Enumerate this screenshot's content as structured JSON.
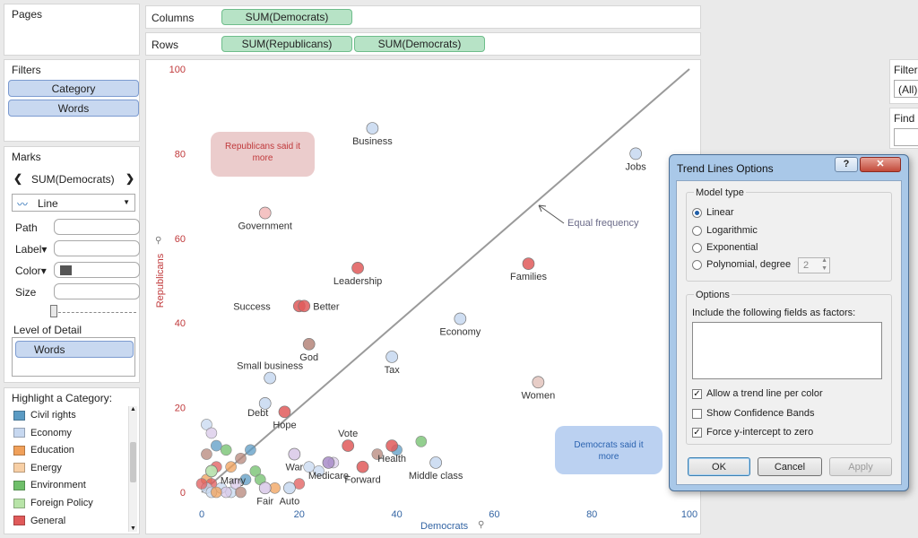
{
  "pages": {
    "title": "Pages"
  },
  "shelves": {
    "columns_label": "Columns",
    "rows_label": "Rows",
    "columns_pills": [
      "SUM(Democrats)"
    ],
    "rows_pills": [
      "SUM(Republicans)",
      "SUM(Democrats)"
    ]
  },
  "filters": {
    "title": "Filters",
    "pills": [
      "Category",
      "Words"
    ]
  },
  "marks": {
    "title": "Marks",
    "measure": "SUM(Democrats)",
    "mark_type": "Line",
    "path": "Path",
    "label": "Label",
    "color": "Color",
    "size": "Size",
    "level_of_detail": "Level of Detail",
    "detail_pill": "Words"
  },
  "highlight": {
    "title": "Highlight a Category:",
    "items": [
      {
        "label": "Civil rights",
        "color": "#5b9bc4"
      },
      {
        "label": "Economy",
        "color": "#c7d8f0"
      },
      {
        "label": "Education",
        "color": "#f0a05a"
      },
      {
        "label": "Energy",
        "color": "#f7cfa5"
      },
      {
        "label": "Environment",
        "color": "#6fbf6a"
      },
      {
        "label": "Foreign Policy",
        "color": "#b8e4a8"
      },
      {
        "label": "General",
        "color": "#e05a5a"
      }
    ]
  },
  "right_panel": {
    "filter_label": "Filter",
    "filter_value": "(All)",
    "find_label": "Find"
  },
  "chart": {
    "annotation_rep": "Republicans said it more",
    "annotation_dem": "Democrats said it more",
    "equal_label": "Equal frequency",
    "xlabel": "Democrats",
    "ylabel": "Republicans"
  },
  "chart_data": {
    "type": "scatter",
    "xlabel": "Democrats",
    "ylabel": "Republicans",
    "xlim": [
      0,
      100
    ],
    "ylim": [
      0,
      100
    ],
    "xticks": [
      0,
      20,
      40,
      60,
      80,
      100
    ],
    "yticks": [
      0,
      20,
      40,
      60,
      80,
      100
    ],
    "reference_line": "y = x",
    "points": [
      {
        "label": "Business",
        "x": 35,
        "y": 86,
        "color": "#c7d8f0"
      },
      {
        "label": "Jobs",
        "x": 89,
        "y": 80,
        "color": "#c7d8f0"
      },
      {
        "label": "Government",
        "x": 13,
        "y": 66,
        "color": "#f2b8b8"
      },
      {
        "label": "Families",
        "x": 67,
        "y": 54,
        "color": "#e05a5a"
      },
      {
        "label": "Leadership",
        "x": 32,
        "y": 53,
        "color": "#e05a5a"
      },
      {
        "label": "Success",
        "x": 20,
        "y": 44,
        "color": "#e05a5a"
      },
      {
        "label": "Better",
        "x": 21,
        "y": 44,
        "color": "#e05a5a"
      },
      {
        "label": "Economy",
        "x": 53,
        "y": 41,
        "color": "#c7d8f0"
      },
      {
        "label": "God",
        "x": 22,
        "y": 35,
        "color": "#b5857a"
      },
      {
        "label": "Tax",
        "x": 39,
        "y": 32,
        "color": "#c7d8f0"
      },
      {
        "label": "Small business",
        "x": 14,
        "y": 27,
        "color": "#c7d8f0"
      },
      {
        "label": "Women",
        "x": 69,
        "y": 26,
        "color": "#e3c4bd"
      },
      {
        "label": "Debt",
        "x": 13,
        "y": 21,
        "color": "#c7d8f0"
      },
      {
        "label": "Hope",
        "x": 17,
        "y": 19,
        "color": "#e05a5a"
      },
      {
        "label": "Marry",
        "x": 2,
        "y": 5,
        "color": "#b8e4a8"
      },
      {
        "label": "War",
        "x": 19,
        "y": 9,
        "color": "#d8c8e8"
      },
      {
        "label": "Vote",
        "x": 30,
        "y": 11,
        "color": "#e05a5a"
      },
      {
        "label": "Health",
        "x": 39,
        "y": 11,
        "color": "#e05a5a"
      },
      {
        "label": "Medicare",
        "x": 26,
        "y": 7,
        "color": "#a88cc8"
      },
      {
        "label": "Forward",
        "x": 33,
        "y": 6,
        "color": "#e05a5a"
      },
      {
        "label": "Middle class",
        "x": 48,
        "y": 7,
        "color": "#c7d8f0"
      },
      {
        "label": "Fair",
        "x": 13,
        "y": 1,
        "color": "#d8c8e8"
      },
      {
        "label": "Auto",
        "x": 18,
        "y": 1,
        "color": "#c7d8f0"
      }
    ]
  },
  "dialog": {
    "title": "Trend Lines Options",
    "help": "?",
    "close": "✕",
    "model_type_label": "Model type",
    "models": [
      "Linear",
      "Logarithmic",
      "Exponential",
      "Polynomial, degree"
    ],
    "selected_model": "Linear",
    "degree": "2",
    "options_label": "Options",
    "factors_label": "Include the following fields as factors:",
    "checkbox_trend_per_color": "Allow a trend line per color",
    "checkbox_confidence": "Show Confidence Bands",
    "checkbox_intercept": "Force y-intercept to zero",
    "ok": "OK",
    "cancel": "Cancel",
    "apply": "Apply"
  }
}
